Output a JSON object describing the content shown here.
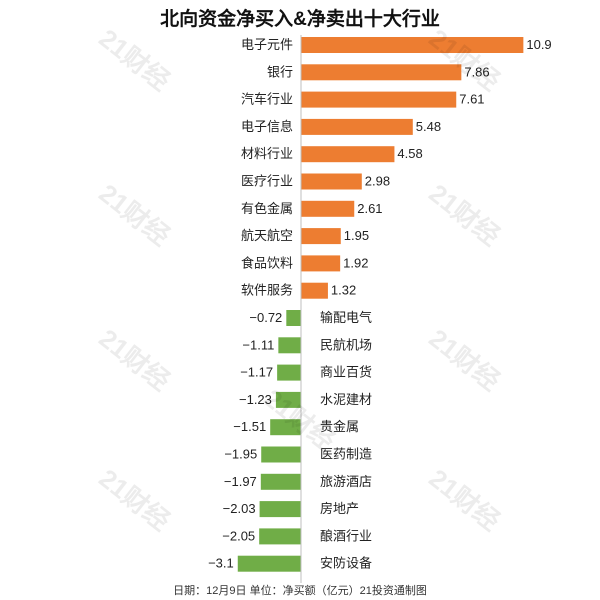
{
  "chart_data": {
    "type": "bar",
    "orientation": "horizontal",
    "title": "北向资金净买入&净卖出十大行业",
    "categories": [
      "电子元件",
      "银行",
      "汽车行业",
      "电子信息",
      "材料行业",
      "医疗行业",
      "有色金属",
      "航天航空",
      "食品饮料",
      "软件服务",
      "输配电气",
      "民航机场",
      "商业百货",
      "水泥建材",
      "贵金属",
      "医药制造",
      "旅游酒店",
      "房地产",
      "酿酒行业",
      "安防设备"
    ],
    "values": [
      10.9,
      7.86,
      7.61,
      5.48,
      4.58,
      2.98,
      2.61,
      1.95,
      1.92,
      1.32,
      -0.72,
      -1.11,
      -1.17,
      -1.23,
      -1.51,
      -1.95,
      -1.97,
      -2.03,
      -2.05,
      -3.1
    ],
    "value_labels": [
      "10.9",
      "7.86",
      "7.61",
      "5.48",
      "4.58",
      "2.98",
      "2.61",
      "1.95",
      "1.92",
      "1.32",
      "−0.72",
      "−1.11",
      "−1.17",
      "−1.23",
      "−1.51",
      "−1.95",
      "−1.97",
      "−2.03",
      "−2.05",
      "−3.1"
    ],
    "colors": {
      "positive": "#ED7D31",
      "negative": "#70AD47"
    },
    "grid": false,
    "legend": "none"
  },
  "footnote": "日期：12月9日 单位：净买额（亿元）21投资通制图",
  "watermark": "21财经"
}
